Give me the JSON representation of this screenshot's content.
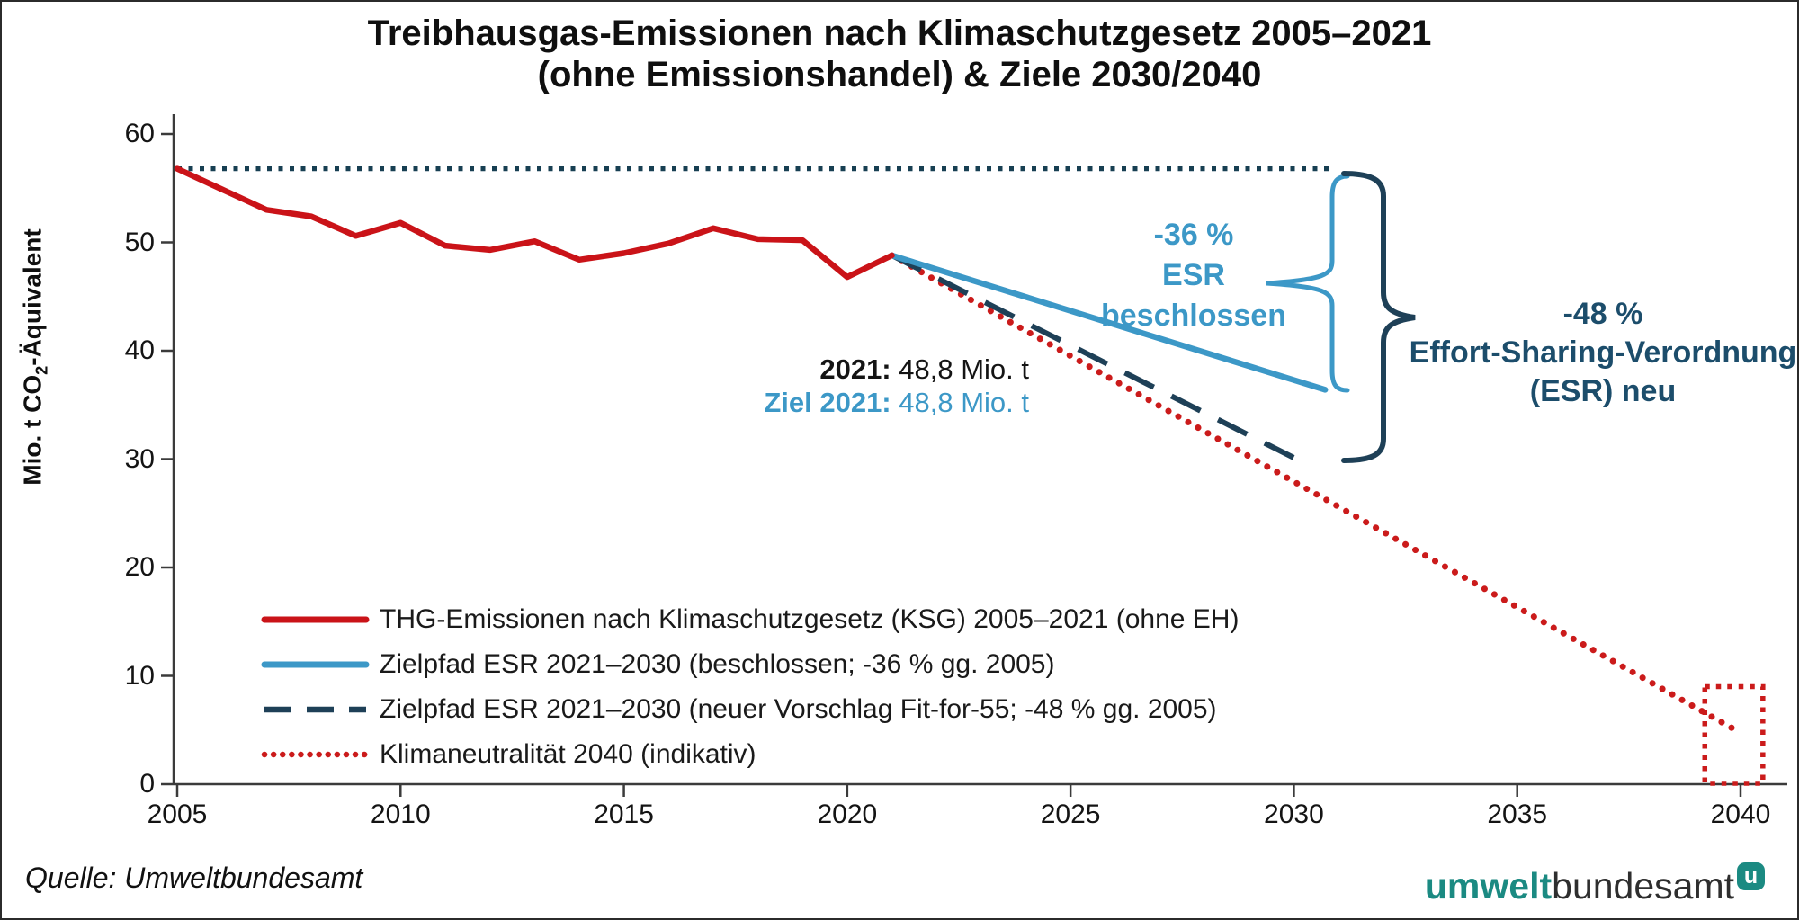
{
  "title": {
    "line1": "Treibhausgas-Emissionen nach Klimaschutzgesetz 2005–2021",
    "line2": "(ohne Emissionshandel) & Ziele 2030/2040"
  },
  "y_axis": {
    "pre": "Mio. t CO",
    "sub": "2",
    "post": "-Äquivalent"
  },
  "source": "Quelle: Umweltbundesamt",
  "logo": {
    "part1": "umwelt",
    "part2": "bundesamt",
    "badge": "u"
  },
  "annotations": {
    "value_2021_label": "2021:",
    "value_2021_text": " 48,8 Mio. t",
    "target_2021_label": "Ziel 2021:",
    "target_2021_text": " 48,8 Mio. t",
    "esr36": {
      "line1": "-36 %",
      "line2": "ESR",
      "line3": "beschlossen"
    },
    "esr48": {
      "line1": "-48 %",
      "line2": "Effort-Sharing-Verordnung",
      "line3": "(ESR) neu"
    }
  },
  "colors": {
    "red": "#ca1318",
    "red_dotted": "#cb1b1b",
    "light_blue": "#3c98c7",
    "dark_navy": "#1e4057",
    "baseline_navy": "#173f52",
    "navy_text": "#1c4d6b",
    "axis": "#3b3b3b",
    "teal": "#1b8a82"
  },
  "chart_data": {
    "type": "line",
    "title": "Treibhausgas-Emissionen nach Klimaschutzgesetz 2005–2021 (ohne Emissionshandel) & Ziele 2030/2040",
    "xlabel": "",
    "ylabel": "Mio. t CO2-Äquivalent",
    "xlim": [
      2005,
      2041
    ],
    "ylim": [
      0,
      60
    ],
    "x_ticks": [
      2005,
      2010,
      2015,
      2020,
      2025,
      2030,
      2035,
      2040
    ],
    "y_ticks": [
      0,
      10,
      20,
      30,
      40,
      50,
      60
    ],
    "grid": false,
    "legend_position": "lower-left",
    "series": [
      {
        "key": "baseline2005",
        "color": "#173f52",
        "style": "dotted_square",
        "in_legend": false,
        "x": [
          2005,
          2030.9
        ],
        "y": [
          56.8,
          56.8
        ]
      },
      {
        "key": "neutral2040",
        "name": "Klimaneutralität 2040 (indikativ)",
        "color": "#cb1b1b",
        "style": "dotted_round",
        "in_legend": true,
        "x": [
          2021,
          2039.8
        ],
        "y": [
          48.8,
          5.2
        ]
      },
      {
        "key": "ziel48",
        "name": "Zielpfad ESR 2021–2030 (neuer Vorschlag Fit-for-55; -48 % gg. 2005)",
        "color": "#1e4057",
        "style": "dashed",
        "in_legend": true,
        "x": [
          2021,
          2030.3
        ],
        "y": [
          48.8,
          29.5
        ]
      },
      {
        "key": "ziel36",
        "name": "Zielpfad ESR 2021–2030 (beschlossen; -36 % gg. 2005)",
        "color": "#3c98c7",
        "style": "solid",
        "in_legend": true,
        "x": [
          2021,
          2030.7
        ],
        "y": [
          48.8,
          36.4
        ]
      },
      {
        "key": "thg",
        "name": "THG-Emissionen nach Klimaschutzgesetz (KSG) 2005–2021 (ohne EH)",
        "color": "#ca1318",
        "style": "solid",
        "in_legend": true,
        "x": [
          2005,
          2006,
          2007,
          2008,
          2009,
          2010,
          2011,
          2012,
          2013,
          2014,
          2015,
          2016,
          2017,
          2018,
          2019,
          2020,
          2021
        ],
        "y": [
          56.8,
          54.9,
          53.0,
          52.4,
          50.6,
          51.8,
          49.7,
          49.3,
          50.1,
          48.4,
          49.0,
          49.9,
          51.3,
          50.3,
          50.2,
          46.8,
          48.8
        ]
      }
    ],
    "legend_order": [
      "thg",
      "ziel36",
      "ziel48",
      "neutral2040"
    ],
    "target_box_2040": {
      "x": [
        2039.2,
        2040.5
      ],
      "y": [
        0,
        9
      ],
      "color": "#cb1b1b"
    }
  }
}
